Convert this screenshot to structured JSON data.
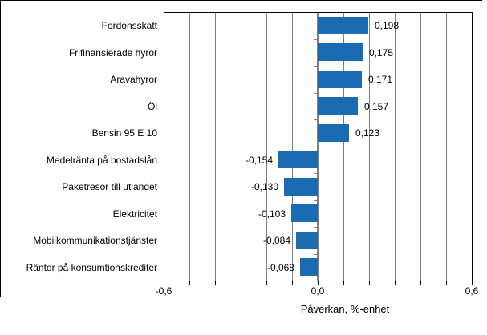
{
  "chart_data": {
    "type": "bar",
    "orientation": "horizontal",
    "xlabel": "Påverkan, %-enhet",
    "xlim": [
      -0.6,
      0.6
    ],
    "gridline_interval": 0.1,
    "grid": true,
    "legend": false,
    "x_ticks": [
      {
        "value": -0.6,
        "label": "-0,6"
      },
      {
        "value": 0.0,
        "label": "0,0"
      },
      {
        "value": 0.6,
        "label": "0,6"
      }
    ],
    "categories": [
      "Fordonsskatt",
      "Frifinansierade hyror",
      "Aravahyror",
      "Öl",
      "Bensin 95 E 10",
      "Medelränta på bostadslån",
      "Paketresor till utlandet",
      "Elektricitet",
      "Mobilkommunikationstjänster",
      "Räntor på konsumtionskrediter"
    ],
    "values": [
      0.198,
      0.175,
      0.171,
      0.157,
      0.123,
      -0.154,
      -0.13,
      -0.103,
      -0.084,
      -0.068
    ],
    "value_labels": [
      "0,198",
      "0,175",
      "0,171",
      "0,157",
      "0,123",
      "-0,154",
      "-0,130",
      "-0,103",
      "-0,084",
      "-0,068"
    ],
    "colors": {
      "bar": "#1b6bb3",
      "gridline": "#808080",
      "zero_axis": "#808080",
      "axis": "#000000",
      "text": "#000000",
      "background": "#ffffff"
    }
  }
}
